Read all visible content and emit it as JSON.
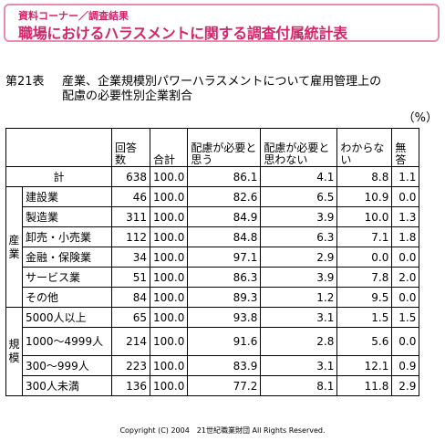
{
  "banner": {
    "subtitle": "資料コーナー／調査結果",
    "title": "職場におけるハラスメントに関する調査付属統計表"
  },
  "table_title": {
    "number": "第21表",
    "line1": "産業、企業規模別パワーハラスメントについて雇用管理上の",
    "line2": "配慮の必要性別企業割合"
  },
  "unit": "（%）",
  "headers": {
    "responses": "回答数",
    "total": "合計",
    "need": "配慮が必要と思う",
    "no_need": "配慮が必要と思わない",
    "unknown": "わからない",
    "no_answer": "無答"
  },
  "total_row": {
    "label": "計",
    "values": [
      "638",
      "100.0",
      "86.1",
      "4.1",
      "8.8",
      "1.1"
    ]
  },
  "group_industry": "産業",
  "group_size": "規模",
  "industry_rows": [
    {
      "label": "建設業",
      "values": [
        "46",
        "100.0",
        "82.6",
        "6.5",
        "10.9",
        "0.0"
      ]
    },
    {
      "label": "製造業",
      "values": [
        "311",
        "100.0",
        "84.9",
        "3.9",
        "10.0",
        "1.3"
      ]
    },
    {
      "label": "卸売・小売業",
      "values": [
        "112",
        "100.0",
        "84.8",
        "6.3",
        "7.1",
        "1.8"
      ]
    },
    {
      "label": "金融・保険業",
      "values": [
        "34",
        "100.0",
        "97.1",
        "2.9",
        "0.0",
        "0.0"
      ]
    },
    {
      "label": "サービス業",
      "values": [
        "51",
        "100.0",
        "86.3",
        "3.9",
        "7.8",
        "2.0"
      ]
    },
    {
      "label": "その他",
      "values": [
        "84",
        "100.0",
        "89.3",
        "1.2",
        "9.5",
        "0.0"
      ]
    }
  ],
  "size_rows": [
    {
      "label": "5000人以上",
      "values": [
        "65",
        "100.0",
        "93.8",
        "3.1",
        "1.5",
        "1.5"
      ]
    },
    {
      "label": "1000〜4999人",
      "values": [
        "214",
        "100.0",
        "91.6",
        "2.8",
        "5.6",
        "0.0"
      ]
    },
    {
      "label": "300〜999人",
      "values": [
        "223",
        "100.0",
        "83.9",
        "3.1",
        "12.1",
        "0.9"
      ]
    },
    {
      "label": "300人未満",
      "values": [
        "136",
        "100.0",
        "77.2",
        "8.1",
        "11.8",
        "2.9"
      ]
    }
  ],
  "copyright": "Copyright (C) 2004　21世紀職業財団 All Rights Reserved."
}
